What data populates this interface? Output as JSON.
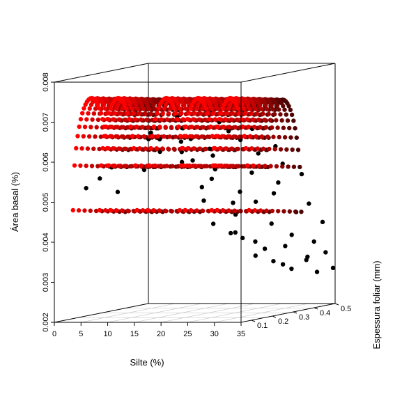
{
  "chart_data": {
    "type": "scatter3d",
    "xlabel": "Silte (%)",
    "ylabel": "Espessura foliar (mm)",
    "zlabel": "Área basal (%)",
    "xlim": [
      0,
      35
    ],
    "ylim": [
      0.05,
      0.5
    ],
    "zlim": [
      0.002,
      0.008
    ],
    "x_ticks": [
      "0",
      "5",
      "10",
      "15",
      "20",
      "25",
      "30",
      "35"
    ],
    "y_ticks": [
      "0.1",
      "0.2",
      "0.3",
      "0.4",
      "0.5"
    ],
    "z_ticks": [
      "0.002",
      "0.003",
      "0.004",
      "0.005",
      "0.006",
      "0.007",
      "0.008"
    ],
    "colors": {
      "surface_near": "#ff0000",
      "surface_far": "#4a0000",
      "observed": "#000000"
    },
    "grid": "floor",
    "series": [
      {
        "kind": "fitted-arches",
        "arch_centers_silte": [
          7,
          12,
          21,
          27,
          33
        ],
        "arch_half_width_silte": 3.5,
        "espessura_range": [
          0.05,
          0.3
        ],
        "peak_area_basal": 0.0076
      },
      {
        "kind": "observed",
        "points": [
          [
            4,
            0.1,
            0.0053
          ],
          [
            5,
            0.14,
            0.0055
          ],
          [
            6,
            0.2,
            0.0051
          ],
          [
            8,
            0.12,
            0.0058
          ],
          [
            9,
            0.25,
            0.0056
          ],
          [
            10,
            0.3,
            0.006
          ],
          [
            11,
            0.22,
            0.0064
          ],
          [
            12,
            0.35,
            0.0062
          ],
          [
            13,
            0.18,
            0.0066
          ],
          [
            14,
            0.28,
            0.0069
          ],
          [
            15,
            0.32,
            0.0063
          ],
          [
            16,
            0.4,
            0.0058
          ],
          [
            17,
            0.12,
            0.0065
          ],
          [
            18,
            0.2,
            0.0061
          ],
          [
            18,
            0.36,
            0.0055
          ],
          [
            19,
            0.28,
            0.0048
          ],
          [
            19,
            0.42,
            0.0046
          ],
          [
            20,
            0.15,
            0.0059
          ],
          [
            20,
            0.3,
            0.0042
          ],
          [
            21,
            0.38,
            0.0039
          ],
          [
            21,
            0.22,
            0.0052
          ],
          [
            22,
            0.45,
            0.0036
          ],
          [
            22,
            0.1,
            0.0068
          ],
          [
            23,
            0.33,
            0.0044
          ],
          [
            23,
            0.25,
            0.0057
          ],
          [
            24,
            0.4,
            0.0033
          ],
          [
            24,
            0.18,
            0.0062
          ],
          [
            25,
            0.3,
            0.005
          ],
          [
            25,
            0.46,
            0.0031
          ],
          [
            26,
            0.22,
            0.0066
          ],
          [
            26,
            0.35,
            0.0047
          ],
          [
            27,
            0.4,
            0.0041
          ],
          [
            27,
            0.15,
            0.0069
          ],
          [
            28,
            0.28,
            0.0055
          ],
          [
            28,
            0.44,
            0.0035
          ],
          [
            29,
            0.36,
            0.0049
          ],
          [
            29,
            0.2,
            0.0064
          ],
          [
            30,
            0.42,
            0.0038
          ],
          [
            30,
            0.26,
            0.006
          ],
          [
            31,
            0.33,
            0.0052
          ],
          [
            31,
            0.47,
            0.0032
          ],
          [
            32,
            0.18,
            0.0067
          ],
          [
            32,
            0.39,
            0.0044
          ],
          [
            33,
            0.3,
            0.0057
          ],
          [
            33,
            0.45,
            0.0036
          ],
          [
            34,
            0.24,
            0.0062
          ],
          [
            34,
            0.4,
            0.0046
          ],
          [
            34,
            0.48,
            0.0033
          ],
          [
            35,
            0.34,
            0.0054
          ],
          [
            35,
            0.44,
            0.0041
          ],
          [
            26,
            0.48,
            0.003
          ],
          [
            30,
            0.49,
            0.0031
          ],
          [
            23,
            0.47,
            0.0034
          ],
          [
            20,
            0.44,
            0.0037
          ],
          [
            17,
            0.46,
            0.0038
          ],
          [
            15,
            0.42,
            0.0052
          ],
          [
            13,
            0.38,
            0.0057
          ],
          [
            28,
            0.47,
            0.0029
          ],
          [
            32,
            0.49,
            0.0028
          ],
          [
            35,
            0.49,
            0.0029
          ]
        ]
      }
    ]
  }
}
